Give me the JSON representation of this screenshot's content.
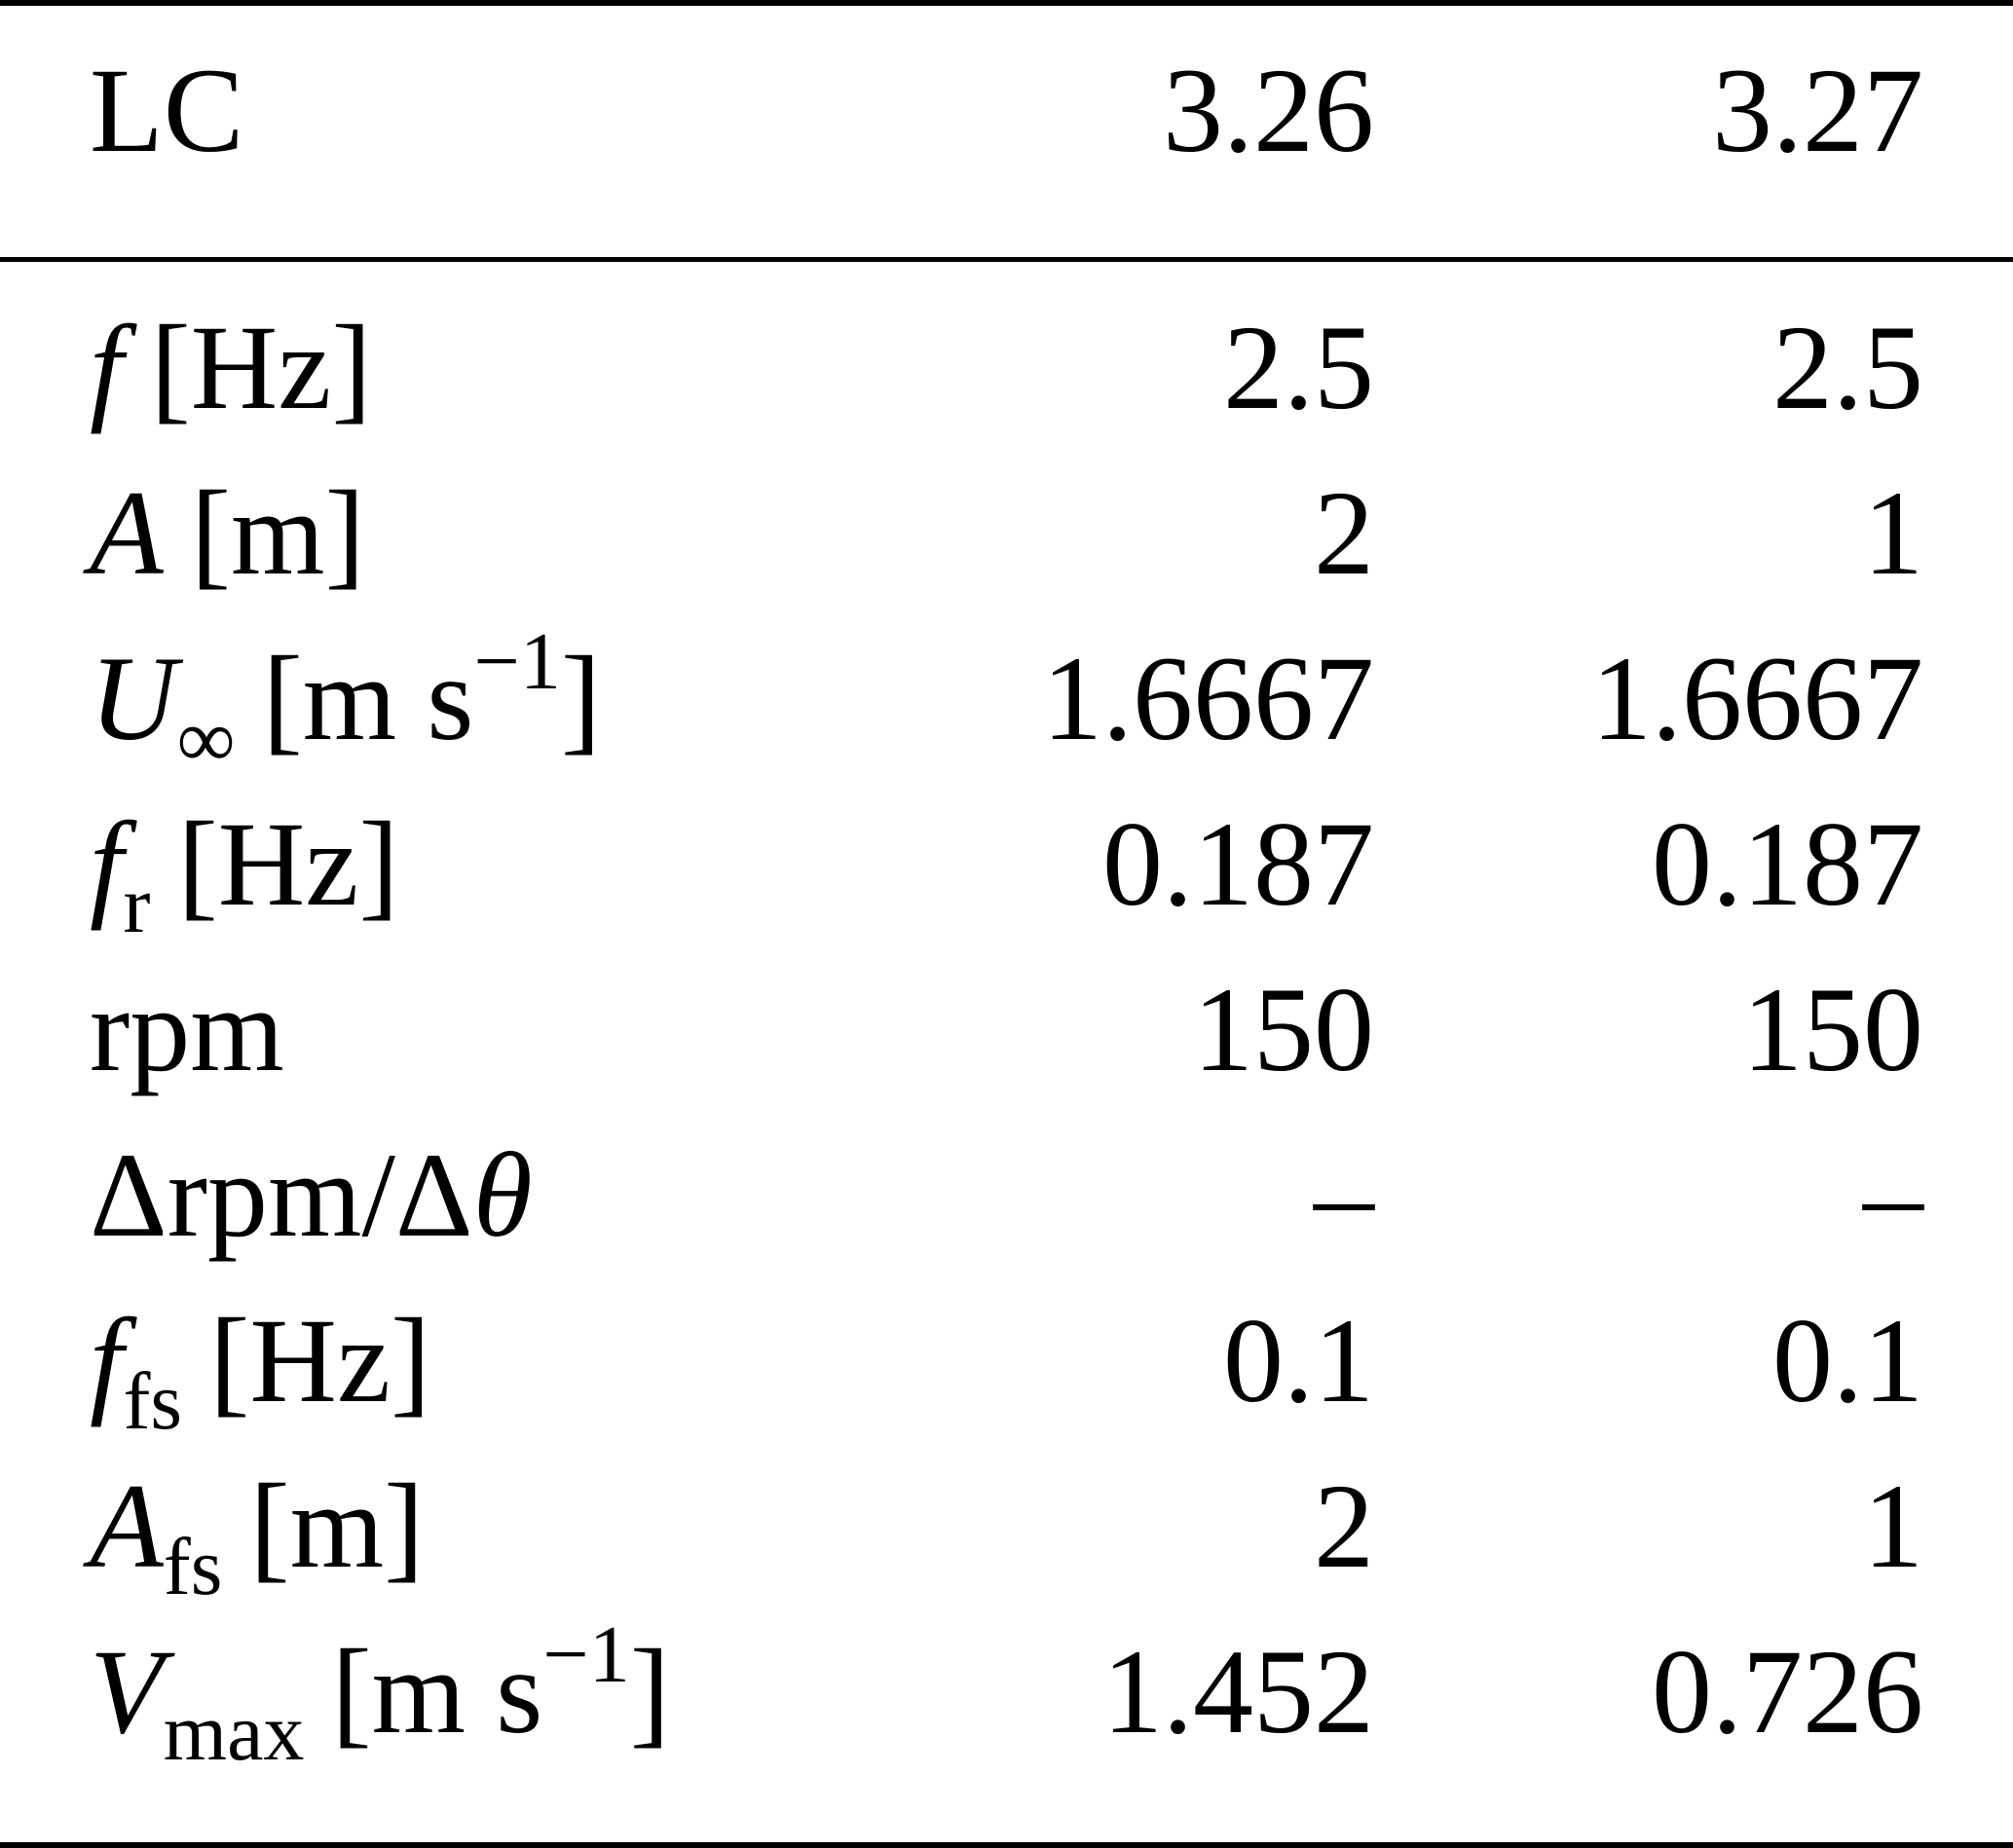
{
  "header": {
    "label": "LC",
    "col1": "3.26",
    "col2": "3.27"
  },
  "rows": [
    {
      "sym": "f",
      "sub": "",
      "unit": "[Hz]",
      "v1": "2.5",
      "v2": "2.5"
    },
    {
      "sym": "A",
      "sub": "",
      "unit": "[m]",
      "v1": "2",
      "v2": "1"
    },
    {
      "sym": "U",
      "sub": "∞",
      "unit_pre": "[m s",
      "unit_sup": "−1",
      "unit_post": "]",
      "v1": "1.6667",
      "v2": "1.6667"
    },
    {
      "sym": "f",
      "sub": "r",
      "unit": "[Hz]",
      "v1": "0.187",
      "v2": "0.187"
    },
    {
      "label": "rpm",
      "v1": "150",
      "v2": "150"
    },
    {
      "pre": "Δrpm/Δ",
      "sym": "θ",
      "v1": "–",
      "v2": "–"
    },
    {
      "sym": "f",
      "sub": "fs",
      "unit": "[Hz]",
      "v1": "0.1",
      "v2": "0.1"
    },
    {
      "sym": "A",
      "sub": "fs",
      "unit": "[m]",
      "v1": "2",
      "v2": "1"
    },
    {
      "sym": "V",
      "sub": "max",
      "unit_pre": "[m s",
      "unit_sup": "−1",
      "unit_post": "]",
      "v1": "1.452",
      "v2": "0.726"
    }
  ]
}
